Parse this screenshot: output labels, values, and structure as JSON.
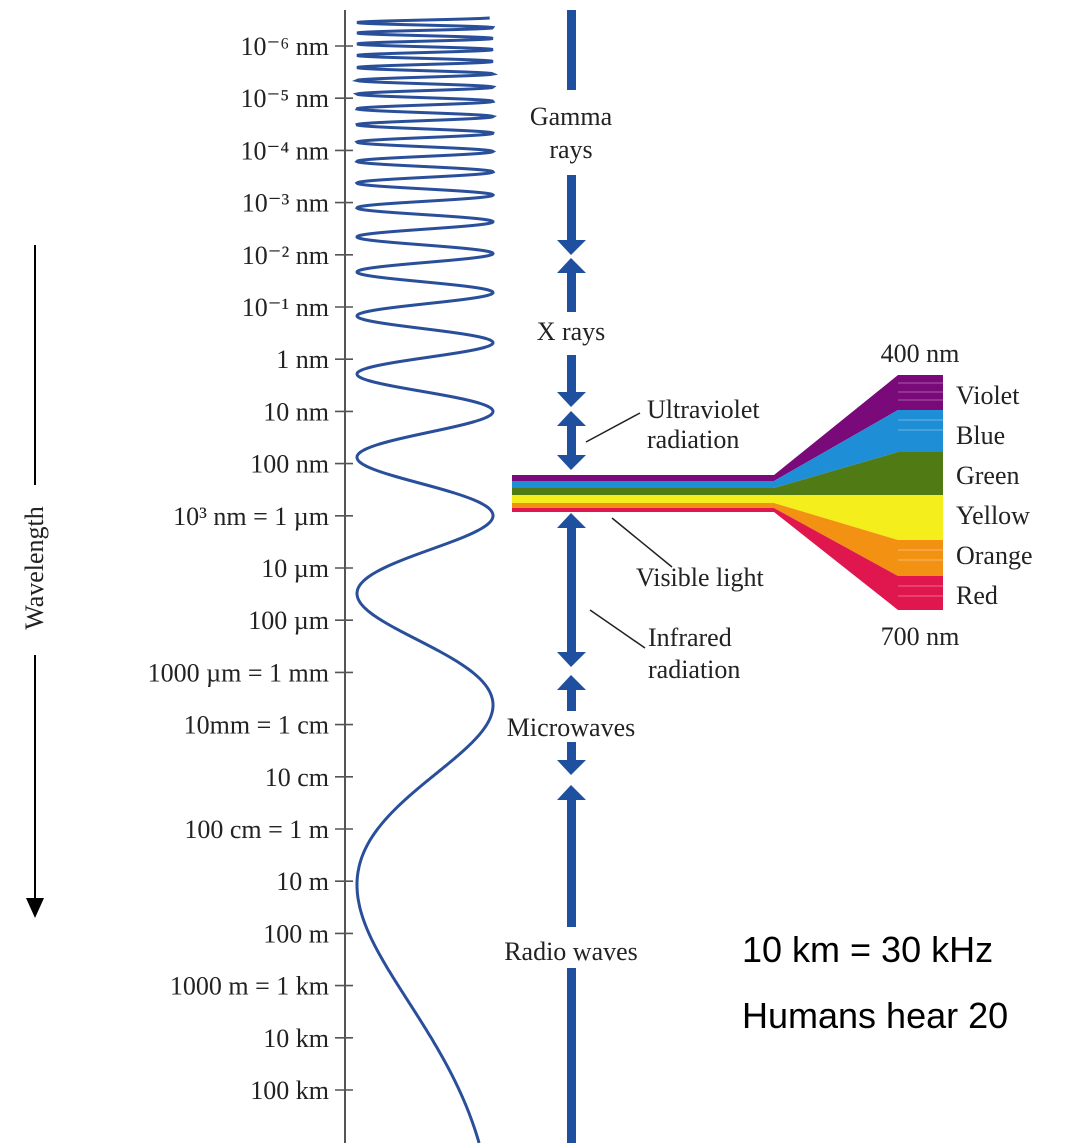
{
  "axis": {
    "label": "Wavelength",
    "ticks": [
      {
        "label": "10⁻⁶ nm"
      },
      {
        "label": "10⁻⁵ nm"
      },
      {
        "label": "10⁻⁴ nm"
      },
      {
        "label": "10⁻³ nm"
      },
      {
        "label": "10⁻² nm"
      },
      {
        "label": "10⁻¹ nm"
      },
      {
        "label": "1 nm"
      },
      {
        "label": "10 nm"
      },
      {
        "label": "100 nm"
      },
      {
        "label": "10³ nm = 1 µm"
      },
      {
        "label": "10 µm"
      },
      {
        "label": "100 µm"
      },
      {
        "label": "1000 µm = 1 mm"
      },
      {
        "label": "10mm = 1 cm"
      },
      {
        "label": "10 cm"
      },
      {
        "label": "100 cm = 1 m"
      },
      {
        "label": "10 m"
      },
      {
        "label": "100 m"
      },
      {
        "label": "1000 m = 1 km"
      },
      {
        "label": "10 km"
      },
      {
        "label": "100 km"
      }
    ]
  },
  "bands": {
    "gamma_line1": "Gamma",
    "gamma_line2": "rays",
    "xrays": "X rays",
    "uv_line1": "Ultraviolet",
    "uv_line2": "radiation",
    "visible": "Visible light",
    "ir_line1": "Infrared",
    "ir_line2": "radiation",
    "microwaves": "Microwaves",
    "radio": "Radio waves"
  },
  "visible_spectrum": {
    "top_label": "400 nm",
    "bottom_label": "700 nm",
    "colors": [
      {
        "name": "Violet",
        "hex": "#7a0a7a"
      },
      {
        "name": "Blue",
        "hex": "#1e8fd6"
      },
      {
        "name": "Green",
        "hex": "#4f7a14"
      },
      {
        "name": "Yellow",
        "hex": "#f4ef1c"
      },
      {
        "name": "Orange",
        "hex": "#f39212"
      },
      {
        "name": "Red",
        "hex": "#e0174f"
      }
    ]
  },
  "notes": {
    "line1": "10 km = 30 kHz",
    "line2": "Humans hear 20"
  },
  "colors": {
    "wave": "#2a4f9a",
    "arrow": "#1f4f9f",
    "axis": "#555555"
  }
}
